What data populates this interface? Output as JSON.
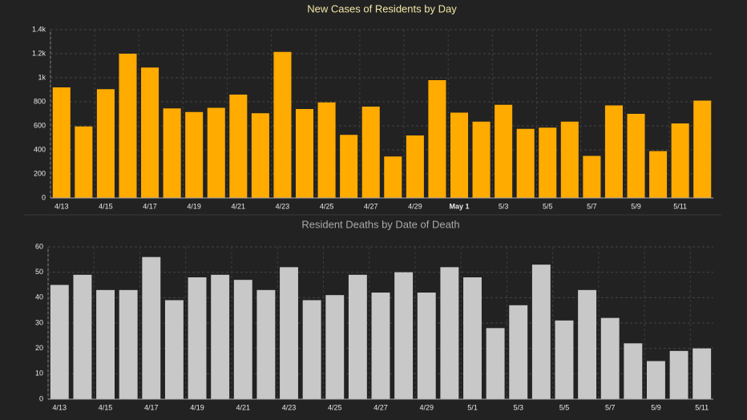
{
  "chart_data": [
    {
      "type": "bar",
      "title": "New Cases of Residents by Day",
      "color": "#ffab00",
      "title_color": "#f3e6a6",
      "categories": [
        "4/13",
        null,
        "4/15",
        null,
        "4/17",
        null,
        "4/19",
        null,
        "4/21",
        null,
        "4/23",
        null,
        "4/25",
        null,
        "4/27",
        null,
        "4/29",
        null,
        "May 1",
        null,
        "5/3",
        null,
        "5/5",
        null,
        "5/7",
        null,
        "5/9",
        null,
        "5/11",
        null
      ],
      "values": [
        920,
        595,
        905,
        1200,
        1085,
        745,
        715,
        750,
        860,
        705,
        1215,
        740,
        795,
        525,
        760,
        345,
        520,
        980,
        710,
        635,
        775,
        575,
        585,
        635,
        350,
        770,
        700,
        390,
        620,
        810
      ],
      "ylim": [
        0,
        1400
      ],
      "yticks": [
        0,
        200,
        400,
        600,
        800,
        {
          "value": 1000,
          "label": "1k"
        },
        {
          "value": 1200,
          "label": "1.2k"
        },
        {
          "value": 1400,
          "label": "1.4k"
        }
      ],
      "grid": true
    },
    {
      "type": "bar",
      "title": "Resident Deaths by Date of Death",
      "color": "#c8c8c8",
      "title_color": "#a8a8a8",
      "categories": [
        "4/13",
        null,
        "4/15",
        null,
        "4/17",
        null,
        "4/19",
        null,
        "4/21",
        null,
        "4/23",
        null,
        "4/25",
        null,
        "4/27",
        null,
        "4/29",
        null,
        "5/1",
        null,
        "5/3",
        null,
        "5/5",
        null,
        "5/7",
        null,
        "5/9",
        null,
        "5/11"
      ],
      "values": [
        45,
        49,
        43,
        43,
        56,
        39,
        48,
        49,
        47,
        43,
        52,
        39,
        41,
        49,
        42,
        50,
        42,
        52,
        48,
        28,
        37,
        53,
        31,
        43,
        32,
        22,
        15,
        19,
        20
      ],
      "ylim": [
        0,
        60
      ],
      "yticks": [
        0,
        10,
        20,
        30,
        40,
        50,
        60
      ],
      "grid": true
    }
  ]
}
